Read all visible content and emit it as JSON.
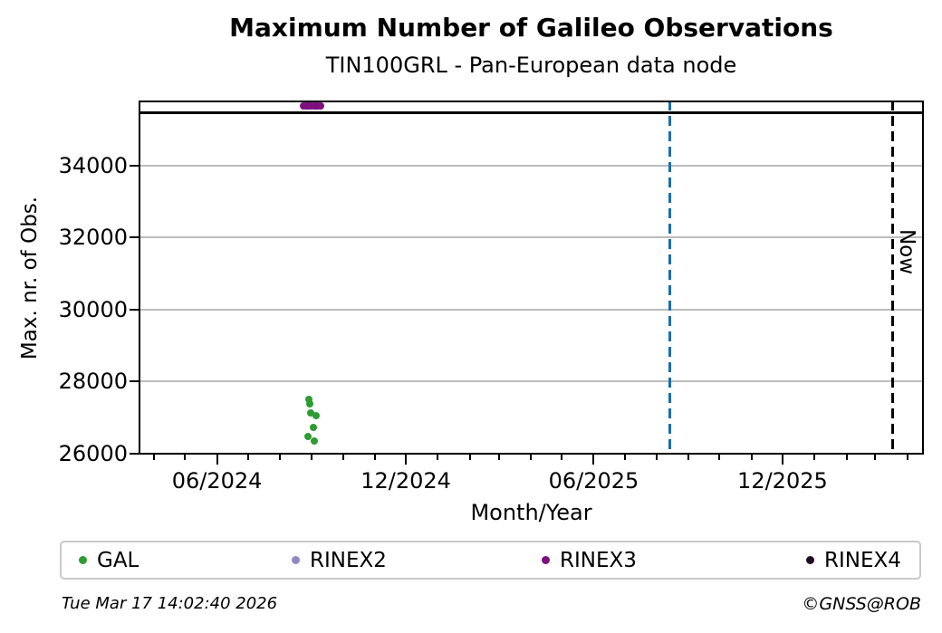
{
  "header": {
    "title": "Maximum Number of Galileo Observations",
    "subtitle": "TIN100GRL - Pan-European data node"
  },
  "chart_data": {
    "type": "scatter",
    "title": "Maximum Number of Galileo Observations",
    "subtitle": "TIN100GRL - Pan-European data node",
    "xlabel": "Month/Year",
    "ylabel": "Max. nr. of Obs.",
    "grid": "horizontal",
    "legend_position": "bottom",
    "x_range": [
      "2024-03-17",
      "2026-04-17"
    ],
    "y_range": [
      25975,
      35810
    ],
    "yticks": [
      {
        "value": 26000,
        "label": "26000"
      },
      {
        "value": 28000,
        "label": "28000"
      },
      {
        "value": 30000,
        "label": "30000"
      },
      {
        "value": 32000,
        "label": "32000"
      },
      {
        "value": 34000,
        "label": "34000"
      }
    ],
    "xticks_major": [
      {
        "date": "2024-06-01",
        "label": "06/2024"
      },
      {
        "date": "2024-12-01",
        "label": "12/2024"
      },
      {
        "date": "2025-06-01",
        "label": "06/2025"
      },
      {
        "date": "2025-12-01",
        "label": "12/2025"
      }
    ],
    "xticks_minor": [
      "2024-04-01",
      "2024-05-01",
      "2024-07-01",
      "2024-08-01",
      "2024-09-01",
      "2024-10-01",
      "2024-11-01",
      "2025-01-01",
      "2025-02-01",
      "2025-03-01",
      "2025-04-01",
      "2025-05-01",
      "2025-07-01",
      "2025-08-01",
      "2025-09-01",
      "2025-10-01",
      "2025-11-01",
      "2026-01-01",
      "2026-02-01",
      "2026-03-01",
      "2026-04-01"
    ],
    "series": [
      {
        "name": "GAL",
        "color": "#2e9b33",
        "points": [
          [
            "2024-08-29",
            27515
          ],
          [
            "2024-08-30",
            27390
          ],
          [
            "2024-08-31",
            27120
          ],
          [
            "2024-09-05",
            27060
          ],
          [
            "2024-09-02",
            26725
          ],
          [
            "2024-08-28",
            26485
          ],
          [
            "2024-09-03",
            26360
          ]
        ]
      },
      {
        "name": "RINEX2",
        "color": "#8f8ac4",
        "points": []
      },
      {
        "name": "RINEX3",
        "color": "#7e0f7e",
        "points": [
          [
            "2024-08-24",
            35655
          ],
          [
            "2024-08-26",
            35660
          ],
          [
            "2024-08-28",
            35663
          ],
          [
            "2024-08-30",
            35660
          ],
          [
            "2024-09-01",
            35656
          ],
          [
            "2024-09-03",
            35660
          ],
          [
            "2024-09-05",
            35663
          ],
          [
            "2024-09-07",
            35660
          ],
          [
            "2024-09-09",
            35656
          ]
        ]
      },
      {
        "name": "RINEX4",
        "color": "#250a28",
        "points": []
      }
    ],
    "annotations": {
      "hline": {
        "value": 35480,
        "color": "#000000",
        "style": "solid"
      },
      "vlines": [
        {
          "date": "2025-08-13",
          "color": "#1b6cb8",
          "style": "dashed",
          "label": ""
        },
        {
          "date": "2026-03-17",
          "color": "#000000",
          "style": "dashed",
          "label": "Now",
          "label_y_value": 31620
        }
      ]
    }
  },
  "footer": {
    "timestamp": "Tue Mar 17 14:02:40 2026",
    "credit": "©GNSS@ROB"
  }
}
